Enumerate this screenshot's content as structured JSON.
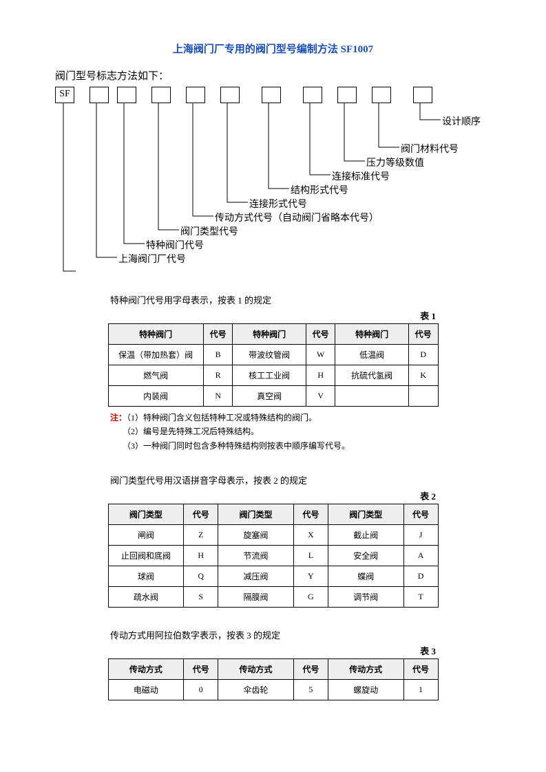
{
  "title": "上海阀门厂专用的阀门型号编制方法 SF1007",
  "subtitle": "阀门型号标志方法如下：",
  "diagram": {
    "sf_box": "SF",
    "labels": [
      "设计顺序",
      "阀门材料代号",
      "压力等级数值",
      "连接标准代号",
      "结构形式代号",
      "连接形式代号",
      "传动方式代号（自动阀门省略本代号）",
      "阀门类型代号",
      "特种阀门代号",
      "上海阀门厂代号"
    ]
  },
  "section1": {
    "caption": "特种阀门代号用字母表示，按表 1 的规定",
    "table_label": "表 1",
    "headers": [
      "特种阀门",
      "代号",
      "特种阀门",
      "代号",
      "特种阀门",
      "代号"
    ],
    "rows": [
      [
        "保温（带加热套）阀",
        "B",
        "带波纹管阀",
        "W",
        "低温阀",
        "D"
      ],
      [
        "燃气阀",
        "R",
        "核工工业阀",
        "H",
        "抗硫代氢阀",
        "K"
      ],
      [
        "内装阀",
        "N",
        "真空阀",
        "V",
        "",
        ""
      ]
    ],
    "notes_label": "注：",
    "notes": [
      "（1）特种阀门含义包括特种工况或特殊结构的阀门。",
      "（2）编号是先特殊工况后特殊结构。",
      "（3）一种阀门同时包含多种特殊结构则按表中顺序编写代号。"
    ]
  },
  "section2": {
    "caption": "阀门类型代号用汉语拼音字母表示，按表 2 的规定",
    "table_label": "表 2",
    "headers": [
      "阀门类型",
      "代号",
      "阀门类型",
      "代号",
      "阀门类型",
      "代号"
    ],
    "rows": [
      [
        "闸阀",
        "Z",
        "旋塞阀",
        "X",
        "截止阀",
        "J"
      ],
      [
        "止回阀和底阀",
        "H",
        "节流阀",
        "L",
        "安全阀",
        "A"
      ],
      [
        "球阀",
        "Q",
        "减压阀",
        "Y",
        "蝶阀",
        "D"
      ],
      [
        "疏水阀",
        "S",
        "隔膜阀",
        "G",
        "调节阀",
        "T"
      ]
    ]
  },
  "section3": {
    "caption": "传动方式用阿拉伯数字表示，按表 3 的规定",
    "table_label": "表 3",
    "headers": [
      "传动方式",
      "代号",
      "传动方式",
      "代号",
      "传动方式",
      "代号"
    ],
    "rows": [
      [
        "电磁动",
        "0",
        "伞齿轮",
        "5",
        "螺旋动",
        "1"
      ]
    ]
  }
}
